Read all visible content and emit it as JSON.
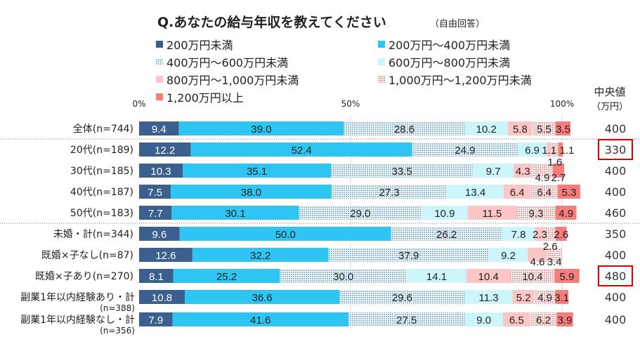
{
  "chart_data": {
    "type": "bar",
    "stacked": "100%",
    "orientation": "horizontal",
    "title": "Q.あなたの給与年収を教えてください",
    "subtitle": "（自由回答）",
    "x_ticks": [
      "0%",
      "50%",
      "100%"
    ],
    "xlim": [
      0,
      100
    ],
    "legend_position": "top",
    "median_header": [
      "中央値",
      "（万円）"
    ],
    "categories": [
      "全体(n=744)",
      "20代(n=189)",
      "30代(n=185)",
      "40代(n=187)",
      "50代(n=183)",
      "未婚・計(n=344)",
      "既婚×子なし(n=87)",
      "既婚×子あり(n=270)",
      "副業1年以内経験あり・計(n=388)",
      "副業1年以内経験なし・計(n=356)"
    ],
    "series": [
      {
        "name": "200万円未満",
        "color": "#3b5f8e",
        "pattern": false,
        "values": [
          9.4,
          12.2,
          10.3,
          7.5,
          7.7,
          9.6,
          12.6,
          8.1,
          10.8,
          7.9
        ]
      },
      {
        "name": "200万円～400万円未満",
        "color": "#2ec5f2",
        "pattern": false,
        "values": [
          39.0,
          52.4,
          35.1,
          38.0,
          30.1,
          50.0,
          32.2,
          25.2,
          36.6,
          41.6
        ]
      },
      {
        "name": "400万円～600万円未満",
        "color": "#9fc6db",
        "pattern": true,
        "values": [
          28.6,
          24.9,
          33.5,
          27.3,
          29.0,
          26.2,
          37.9,
          30.0,
          29.6,
          27.5
        ]
      },
      {
        "name": "600万円～800万円未満",
        "color": "#ccf6fb",
        "pattern": false,
        "values": [
          10.2,
          6.9,
          9.7,
          13.4,
          10.9,
          7.8,
          9.2,
          14.1,
          11.3,
          9.0
        ]
      },
      {
        "name": "800万円～1,000万円未満",
        "color": "#fcc6c6",
        "pattern": false,
        "values": [
          5.8,
          1.1,
          4.3,
          6.4,
          11.5,
          2.3,
          4.6,
          10.4,
          5.2,
          6.5
        ]
      },
      {
        "name": "1,000万円～1,200万円未満",
        "color": "#f0a8a8",
        "pattern": true,
        "values": [
          5.5,
          1.6,
          4.9,
          6.4,
          9.3,
          2.6,
          3.4,
          10.4,
          4.9,
          6.2
        ]
      },
      {
        "name": "1,200万円以上",
        "color": "#f77c7c",
        "pattern": false,
        "values": [
          3.5,
          1.1,
          2.7,
          5.3,
          4.9,
          2.6,
          0,
          5.9,
          3.1,
          3.9
        ]
      }
    ],
    "median": [
      "400",
      "330",
      "400",
      "400",
      "460",
      "350",
      "400",
      "480",
      "400",
      "400"
    ],
    "highlighted_median": [
      1,
      7
    ],
    "highlight_color": "#e00000"
  }
}
